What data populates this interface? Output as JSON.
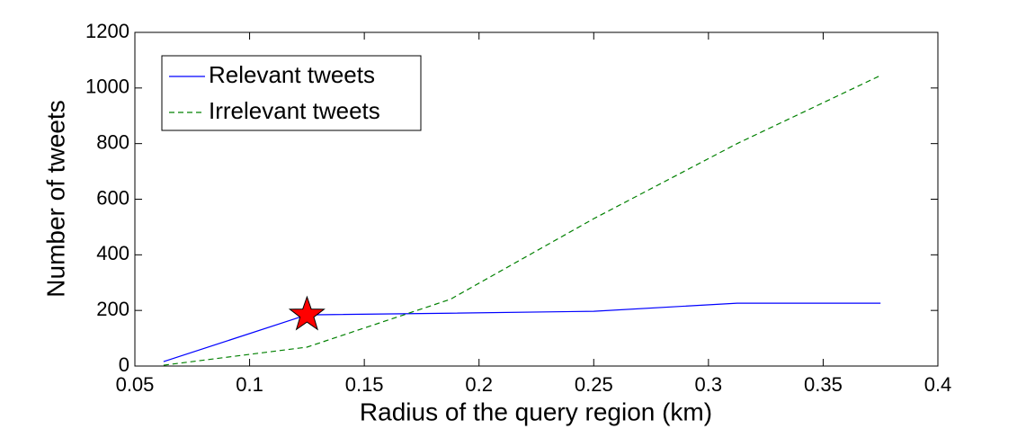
{
  "chart_data": {
    "type": "line",
    "x_label": "Radius of the query region (km)",
    "y_label": "Number of tweets",
    "x": [
      0.0625,
      0.125,
      0.1875,
      0.25,
      0.3125,
      0.375
    ],
    "series": [
      {
        "name": "Relevant tweets",
        "color": "#0000ff",
        "linestyle": "solid",
        "values": [
          16,
          184,
          190,
          197,
          226,
          226
        ],
        "highlight_index": 1,
        "highlight_color": "#ff0000"
      },
      {
        "name": "Irrelevant tweets",
        "color": "#008000",
        "linestyle": "dashed",
        "values": [
          3,
          68,
          240,
          530,
          800,
          1045
        ]
      }
    ],
    "xlim": [
      0.05,
      0.4
    ],
    "xticks": [
      0.05,
      0.1,
      0.15,
      0.2,
      0.25,
      0.3,
      0.35,
      0.4
    ],
    "ylim": [
      0,
      1200
    ],
    "yticks": [
      0,
      200,
      400,
      600,
      800,
      1000,
      1200
    ],
    "grid": false,
    "legend": "upper left"
  }
}
